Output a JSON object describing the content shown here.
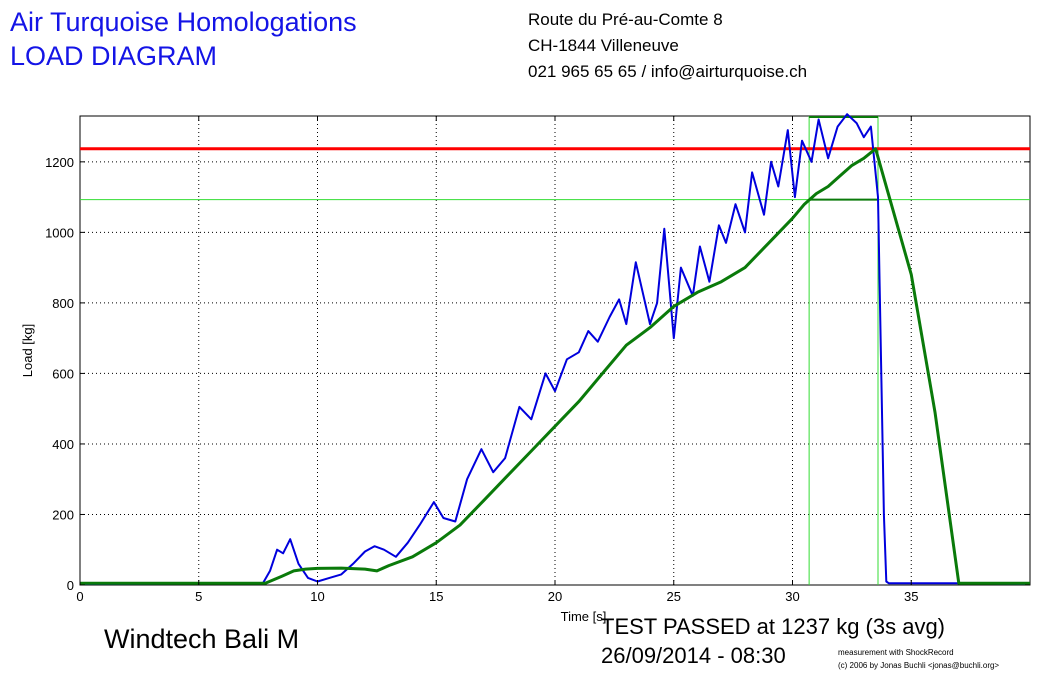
{
  "header": {
    "company": "Air Turquoise Homologations",
    "doc_title": "LOAD DIAGRAM",
    "address_lines": [
      "Route du Pré-au-Comte 8",
      "CH-1844 Villeneuve",
      "021 965 65 65 / info@airturquoise.ch"
    ]
  },
  "footer": {
    "glider": "Windtech Bali M",
    "result": "TEST PASSED at 1237 kg (3s avg)",
    "datetime": "26/09/2014 - 08:30",
    "credit_line1": "measurement with ShockRecord",
    "credit_line2": "(c) 2006 by Jonas Buchli <jonas@buchli.org>"
  },
  "colors": {
    "raw_load": "#0000dd",
    "avg_load": "#0a7a0a",
    "limit_line": "#ff0000",
    "marker_lines": "#33dd33",
    "header_text": "#1414e6"
  },
  "chart_data": {
    "type": "line",
    "title": "",
    "xlabel": "Time [s]",
    "ylabel": "Load [kg]",
    "xlim": [
      0,
      40
    ],
    "ylim": [
      0,
      1330
    ],
    "xticks": [
      0,
      5,
      10,
      15,
      20,
      25,
      30,
      35
    ],
    "yticks": [
      0,
      200,
      400,
      600,
      800,
      1000,
      1200
    ],
    "grid": true,
    "series": [
      {
        "key": "raw",
        "x": [
          0,
          7.7,
          8.0,
          8.3,
          8.55,
          8.85,
          9.2,
          9.6,
          10.0,
          10.5,
          11.0,
          11.5,
          12.0,
          12.4,
          12.8,
          13.3,
          13.8,
          14.3,
          14.9,
          15.3,
          15.8,
          16.3,
          16.9,
          17.4,
          17.9,
          18.5,
          19.0,
          19.6,
          20.0,
          20.5,
          21.0,
          21.4,
          21.8,
          22.3,
          22.7,
          23.0,
          23.4,
          24.0,
          24.3,
          24.6,
          25.0,
          25.3,
          25.8,
          26.1,
          26.5,
          26.9,
          27.2,
          27.6,
          28.0,
          28.3,
          28.8,
          29.1,
          29.4,
          29.8,
          30.1,
          30.4,
          30.8,
          31.1,
          31.5,
          31.9,
          32.3,
          32.7,
          33.0,
          33.3,
          33.6,
          33.85,
          33.95,
          34.05,
          34.2,
          34.6,
          37.0,
          40.0
        ],
        "y": [
          3,
          5,
          40,
          100,
          90,
          130,
          60,
          20,
          10,
          20,
          30,
          60,
          95,
          110,
          100,
          80,
          120,
          170,
          235,
          190,
          180,
          300,
          385,
          320,
          360,
          505,
          470,
          600,
          550,
          640,
          660,
          720,
          690,
          760,
          810,
          740,
          915,
          740,
          800,
          1010,
          700,
          900,
          820,
          960,
          860,
          1020,
          970,
          1080,
          1000,
          1170,
          1050,
          1200,
          1130,
          1290,
          1100,
          1260,
          1200,
          1320,
          1210,
          1300,
          1335,
          1310,
          1270,
          1300,
          1100,
          200,
          10,
          5,
          5,
          5,
          5,
          3
        ]
      },
      {
        "key": "avg",
        "x": [
          0,
          7.8,
          8.5,
          9.0,
          9.5,
          10.0,
          11.0,
          12.0,
          12.5,
          13.0,
          14.0,
          15.0,
          16.0,
          17.0,
          18.0,
          19.0,
          20.0,
          21.0,
          22.0,
          23.0,
          24.0,
          25.0,
          26.0,
          27.0,
          28.0,
          29.0,
          30.0,
          30.5,
          31.0,
          31.5,
          32.0,
          32.5,
          33.0,
          33.5,
          35.0,
          36.0,
          37.0,
          40.0
        ],
        "y": [
          5,
          5,
          25,
          40,
          45,
          47,
          48,
          45,
          40,
          55,
          80,
          120,
          170,
          240,
          310,
          380,
          450,
          520,
          600,
          680,
          730,
          790,
          830,
          860,
          900,
          970,
          1040,
          1080,
          1110,
          1130,
          1160,
          1190,
          1210,
          1237,
          880,
          490,
          5,
          5
        ]
      }
    ],
    "reference_lines": {
      "limit_y": 1237,
      "marker_y": 1093,
      "marker_x_start": 30.7,
      "marker_x_end": 33.6
    }
  }
}
